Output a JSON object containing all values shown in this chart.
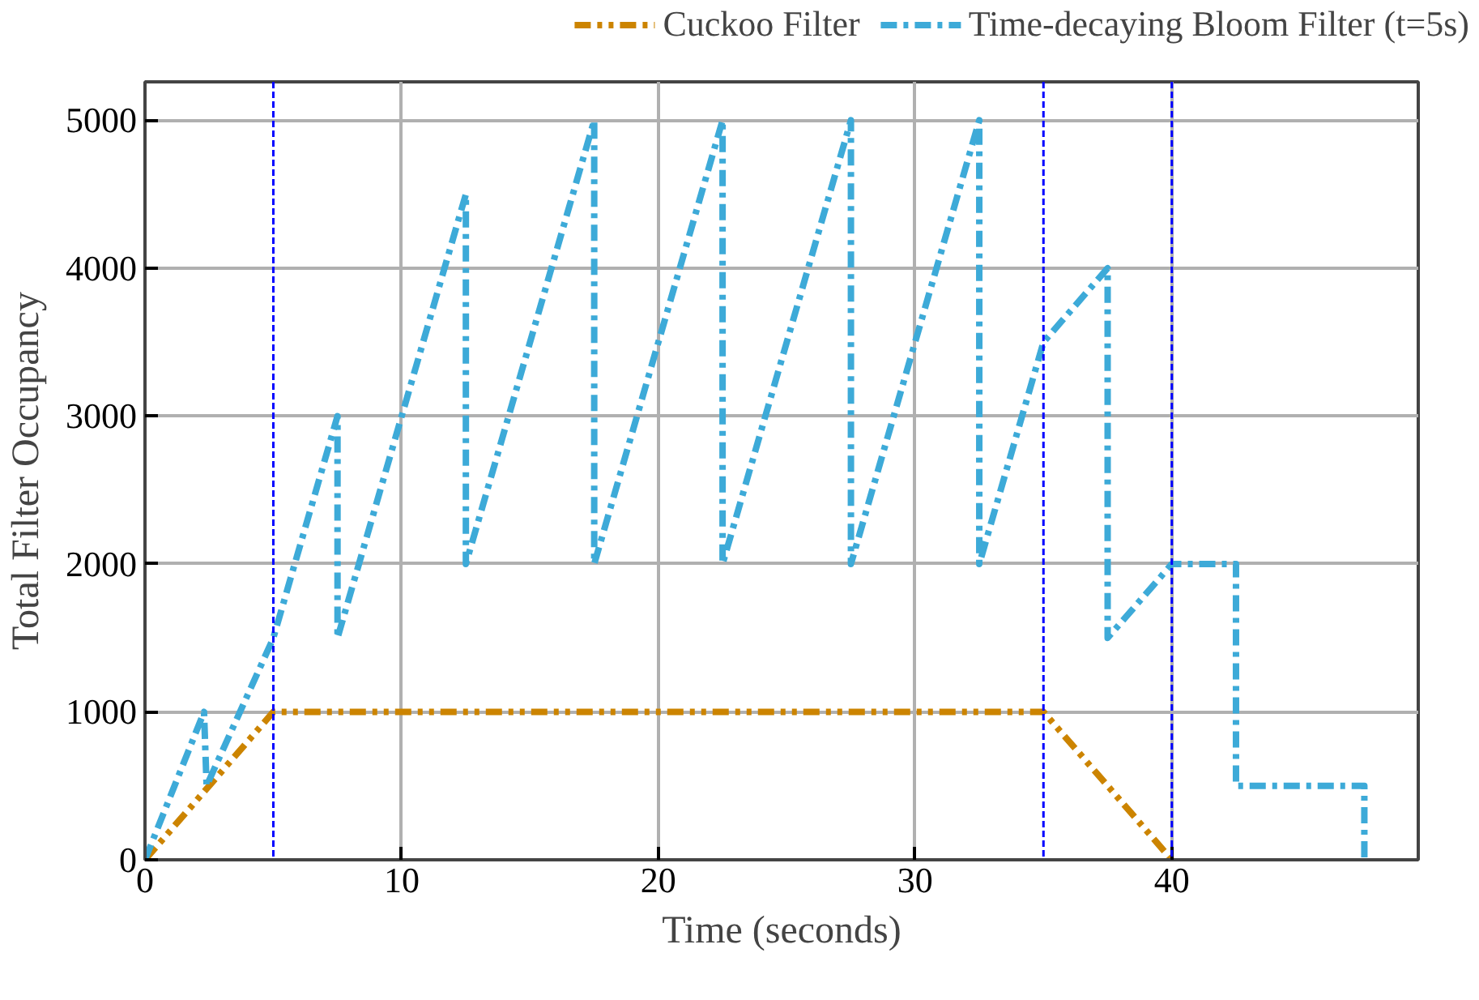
{
  "chart_data": {
    "type": "line",
    "xlabel": "Time (seconds)",
    "ylabel": "Total Filter Occupancy",
    "xlim": [
      0,
      49.6
    ],
    "ylim": [
      0,
      5260
    ],
    "xticks": [
      0,
      10,
      20,
      30,
      40
    ],
    "yticks": [
      0,
      1000,
      2000,
      3000,
      4000,
      5000
    ],
    "grid": true,
    "legend": "top",
    "marker": "none",
    "series": [
      {
        "name": "Cuckoo Filter",
        "color": "#cc8400",
        "line_style": "dashdotdot",
        "x": [
          0,
          5,
          35,
          40
        ],
        "values": [
          0,
          1000,
          1000,
          0
        ]
      },
      {
        "name": "Time-decaying Bloom Filter (t=5s)",
        "color": "#3daad8",
        "line_style": "dashdot",
        "x": [
          0,
          2.3,
          2.4,
          5,
          7.5,
          7.5,
          12.5,
          12.5,
          17.5,
          17.5,
          22.5,
          22.5,
          27.5,
          27.5,
          32.5,
          32.5,
          35,
          37.5,
          37.5,
          40,
          42.5,
          42.5,
          47.5,
          47.5
        ],
        "values": [
          0,
          1000,
          500,
          1500,
          3000,
          1500,
          4500,
          2000,
          5000,
          2000,
          5000,
          2000,
          5000,
          2000,
          5000,
          2000,
          3500,
          4000,
          1500,
          2000,
          2000,
          500,
          500,
          0
        ]
      }
    ],
    "ref_lines": [
      {
        "axis": "x",
        "value": 5,
        "color": "#0000ff",
        "line_style": "dashed"
      },
      {
        "axis": "x",
        "value": 35,
        "color": "#0000ff",
        "line_style": "dashed"
      },
      {
        "axis": "x",
        "value": 40,
        "color": "#0000ff",
        "line_style": "dashed"
      }
    ]
  }
}
